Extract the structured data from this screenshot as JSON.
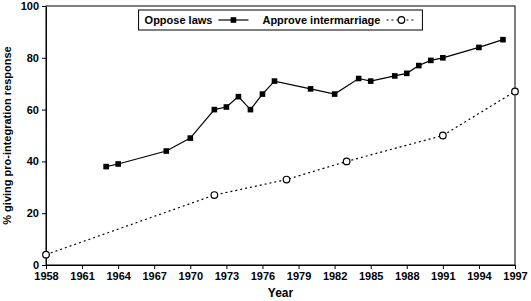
{
  "chart_data": {
    "type": "line",
    "x_label": "Year",
    "y_label": "% giving pro-integration response",
    "xlim": [
      1958,
      1997
    ],
    "xticks": [
      1958,
      1961,
      1964,
      1967,
      1970,
      1973,
      1976,
      1979,
      1982,
      1985,
      1988,
      1991,
      1994,
      1997
    ],
    "ylim": [
      0,
      100
    ],
    "yticks": [
      0,
      20,
      40,
      60,
      80,
      100
    ],
    "legend": "top",
    "grid": false,
    "series": [
      {
        "name": "Oppose laws",
        "color": "#000000",
        "marker": "square",
        "line_style": "solid",
        "x": [
          1963,
          1964,
          1968,
          1970,
          1972,
          1973,
          1974,
          1975,
          1976,
          1977,
          1980,
          1982,
          1984,
          1985,
          1987,
          1988,
          1989,
          1990,
          1991,
          1994,
          1996
        ],
        "values": [
          38,
          39,
          44,
          49,
          60,
          61,
          65,
          60,
          66,
          71,
          68,
          66,
          72,
          71,
          73,
          74,
          77,
          79,
          80,
          84,
          87
        ]
      },
      {
        "name": "Approve intermarriage",
        "color": "#000000",
        "marker": "circle",
        "line_style": "dotted",
        "x": [
          1958,
          1972,
          1978,
          1983,
          1991,
          1997
        ],
        "values": [
          4,
          27,
          33,
          40,
          50,
          67
        ]
      }
    ]
  }
}
